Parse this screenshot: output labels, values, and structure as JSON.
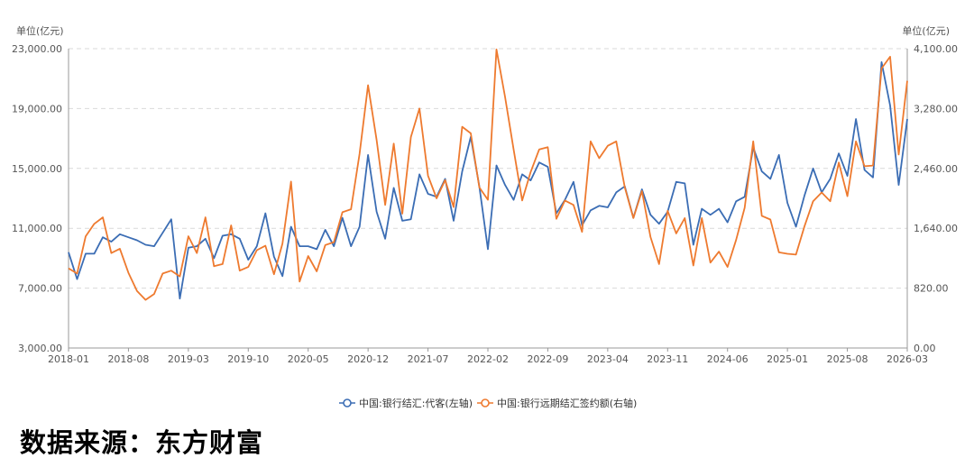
{
  "chart_data": {
    "type": "line",
    "unit_left": "单位(亿元)",
    "unit_right": "单位(亿元)",
    "left_axis": {
      "min": 3000,
      "max": 23000,
      "ticks": [
        "23,000.00",
        "19,000.00",
        "15,000.00",
        "11,000.00",
        "7,000.00",
        "3,000.00"
      ]
    },
    "right_axis": {
      "min": 0,
      "max": 4100,
      "ticks": [
        "4,100.00",
        "3,280.00",
        "2,460.00",
        "1,640.00",
        "820.00",
        "0.00"
      ]
    },
    "x_tick_labels": [
      "2018-01",
      "2018-08",
      "2019-03",
      "2019-10",
      "2020-05",
      "2020-12",
      "2021-07",
      "2022-02",
      "2022-09",
      "2023-04",
      "2023-11",
      "2024-06",
      "2025-01",
      "2025-08",
      "2026-03"
    ],
    "grid": "horizontal-dashed",
    "legend_position": "bottom-center",
    "series": [
      {
        "name": "中国:银行结汇:代客(左轴)",
        "axis": "left",
        "color": "#3b6db4",
        "values": [
          9400,
          7600,
          9300,
          9300,
          10400,
          10100,
          10600,
          10400,
          10200,
          9900,
          9800,
          10700,
          11600,
          6300,
          9700,
          9800,
          10300,
          9000,
          10500,
          10600,
          10300,
          8900,
          9800,
          12000,
          9100,
          7800,
          11100,
          9800,
          9800,
          9600,
          10900,
          9800,
          11700,
          9800,
          11100,
          15900,
          12100,
          10300,
          13700,
          11500,
          11600,
          14600,
          13300,
          13100,
          14300,
          11500,
          14800,
          17100,
          13800,
          9600,
          15200,
          13900,
          12900,
          14600,
          14200,
          15400,
          15100,
          12000,
          12900,
          14100,
          11200,
          12200,
          12500,
          12400,
          13400,
          13800,
          11700,
          13600,
          11900,
          11300,
          12100,
          14100,
          14000,
          9900,
          12300,
          11900,
          12300,
          11400,
          12800,
          13100,
          16400,
          14800,
          14300,
          15900,
          12700,
          11100,
          13200,
          15000,
          13400,
          14300,
          16000,
          14500,
          18300,
          14900,
          14400,
          22100,
          19200,
          13900,
          18300
        ]
      },
      {
        "name": "中国:银行远期结汇签约额(右轴)",
        "axis": "right",
        "color": "#ee7a2f",
        "values": [
          1090,
          1020,
          1530,
          1700,
          1790,
          1300,
          1360,
          1030,
          780,
          660,
          740,
          1020,
          1060,
          980,
          1530,
          1300,
          1790,
          1120,
          1150,
          1680,
          1060,
          1110,
          1340,
          1400,
          1010,
          1430,
          2280,
          910,
          1260,
          1050,
          1410,
          1450,
          1860,
          1900,
          2660,
          3600,
          2850,
          1960,
          2800,
          1840,
          2890,
          3280,
          2360,
          2050,
          2300,
          1930,
          3030,
          2940,
          2200,
          2030,
          4090,
          3440,
          2720,
          2020,
          2410,
          2720,
          2750,
          1770,
          2020,
          1960,
          1590,
          2830,
          2600,
          2770,
          2830,
          2200,
          1780,
          2150,
          1520,
          1150,
          1880,
          1570,
          1780,
          1130,
          1780,
          1170,
          1320,
          1110,
          1480,
          1920,
          2830,
          1810,
          1760,
          1310,
          1290,
          1280,
          1670,
          2010,
          2130,
          2010,
          2540,
          2080,
          2830,
          2490,
          2500,
          3830,
          3990,
          2650,
          3660
        ]
      }
    ],
    "source": "数据来源：东方财富"
  }
}
